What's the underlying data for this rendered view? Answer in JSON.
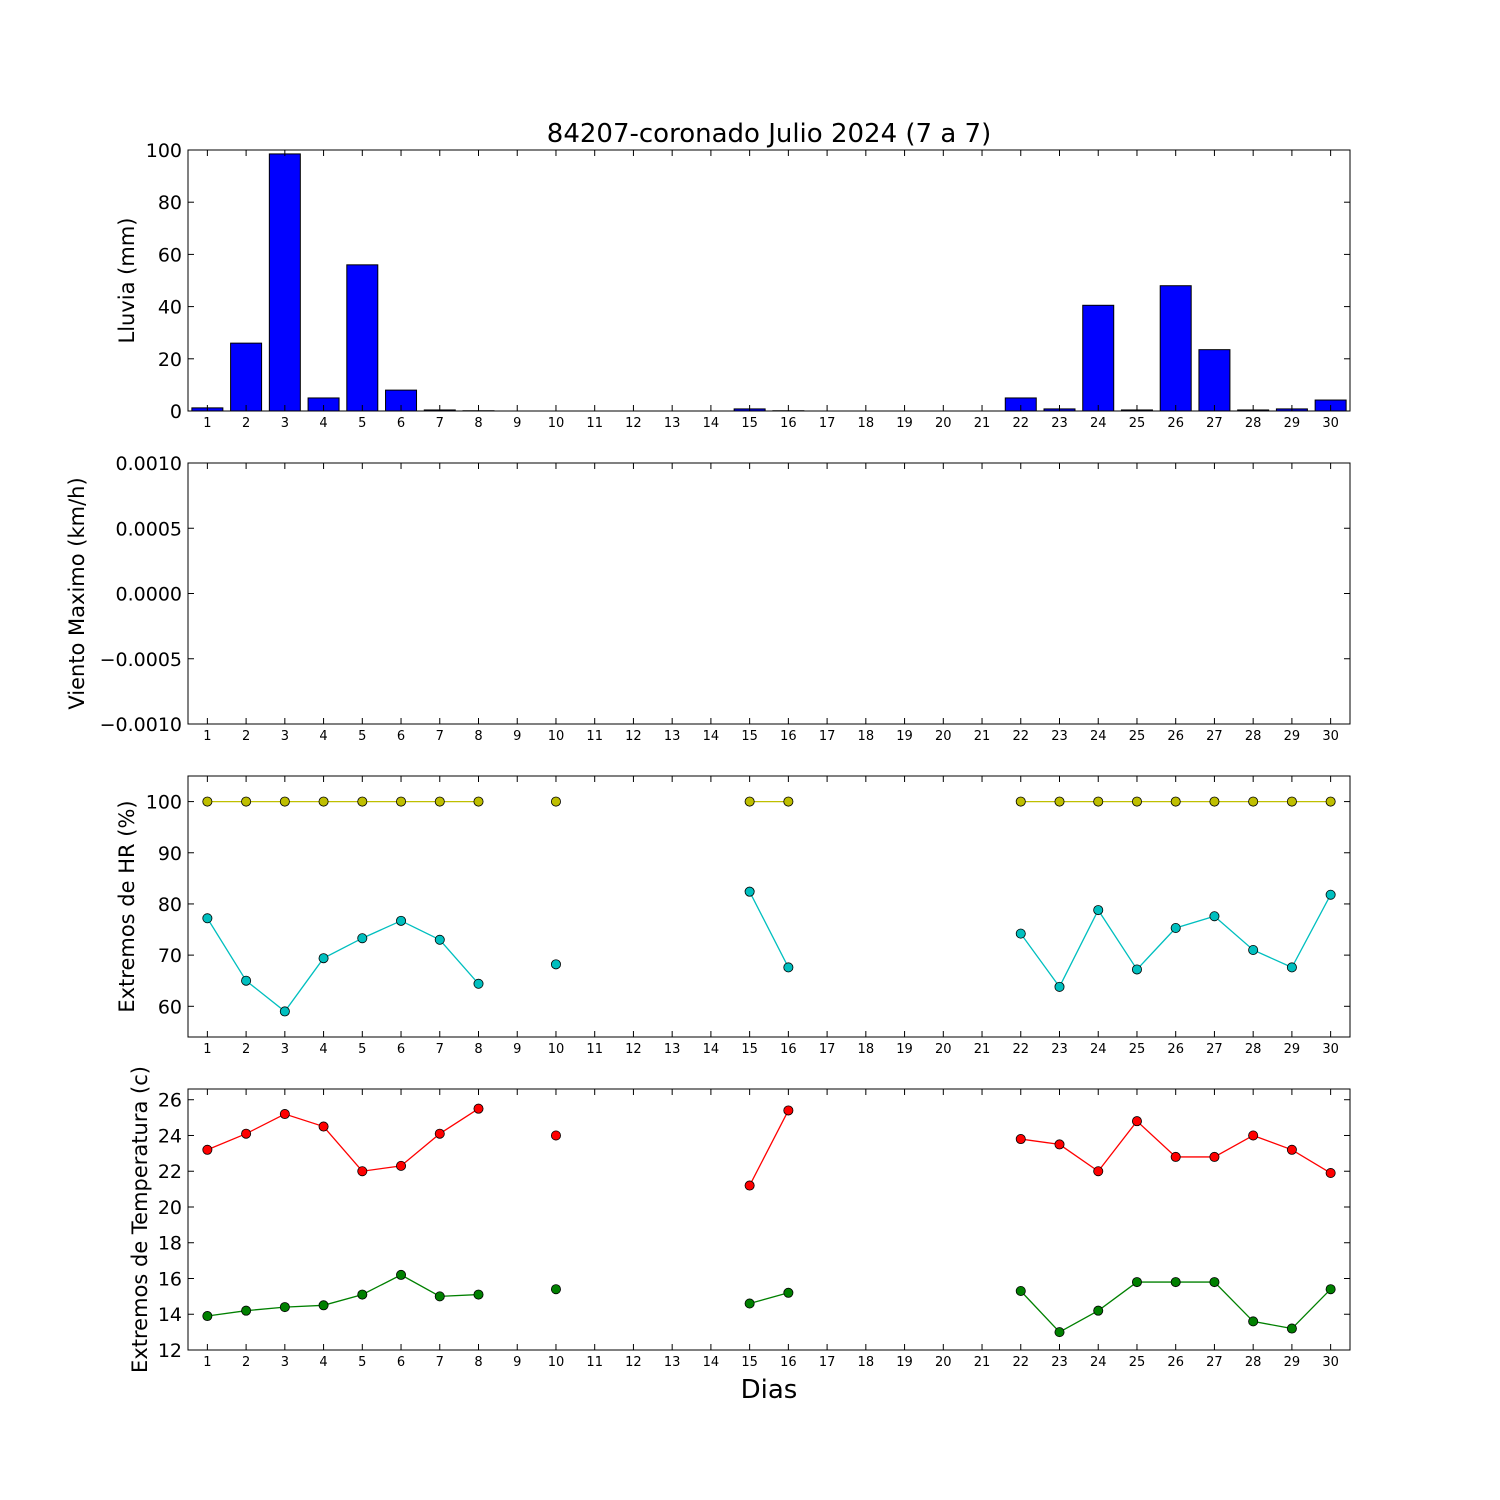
{
  "title": "84207-coronado Julio 2024  (7 a 7)",
  "xlabel": "Dias",
  "days": [
    1,
    2,
    3,
    4,
    5,
    6,
    7,
    8,
    9,
    10,
    11,
    12,
    13,
    14,
    15,
    16,
    17,
    18,
    19,
    20,
    21,
    22,
    23,
    24,
    25,
    26,
    27,
    28,
    29,
    30
  ],
  "colors": {
    "rain": "#0000ff",
    "hr_max": "#bfbf00",
    "hr_min": "#00bfbf",
    "temp_max": "#ff0000",
    "temp_min": "#008000"
  },
  "chart_data": [
    {
      "type": "bar",
      "ylabel": "Lluvia (mm)",
      "ylim": [
        0,
        100
      ],
      "yticks": [
        "0",
        "20",
        "40",
        "60",
        "80",
        "100"
      ],
      "x": [
        1,
        2,
        3,
        4,
        5,
        6,
        7,
        8,
        9,
        10,
        11,
        12,
        13,
        14,
        15,
        16,
        17,
        18,
        19,
        20,
        21,
        22,
        23,
        24,
        25,
        26,
        27,
        28,
        29,
        30
      ],
      "values": [
        1.2,
        26,
        98.5,
        5,
        56,
        8,
        0.4,
        0.1,
        0,
        0,
        0,
        0,
        0,
        0,
        0.8,
        0.1,
        0,
        0,
        0,
        0,
        0,
        5,
        0.8,
        40.5,
        0.4,
        48,
        23.5,
        0.4,
        0.8,
        4.2
      ]
    },
    {
      "type": "line",
      "ylabel": "Viento Maximo (km/h)",
      "ylim": [
        -0.001,
        0.001
      ],
      "yticks": [
        "−0.0010",
        "−0.0005",
        "0.0000",
        "0.0005",
        "0.0010"
      ],
      "series": []
    },
    {
      "type": "line",
      "ylabel": "Extremos de HR (%)",
      "ylim": [
        54,
        105
      ],
      "yticks": [
        "60",
        "70",
        "80",
        "90",
        "100"
      ],
      "series": [
        {
          "color_key": "hr_max",
          "values": [
            100,
            100,
            100,
            100,
            100,
            100,
            100,
            100,
            null,
            100,
            null,
            null,
            null,
            null,
            100,
            100,
            null,
            null,
            null,
            null,
            null,
            100,
            100,
            100,
            100,
            100,
            100,
            100,
            100,
            100
          ]
        },
        {
          "color_key": "hr_min",
          "values": [
            77.2,
            65,
            59,
            69.4,
            73.3,
            76.7,
            73,
            64.4,
            null,
            68.2,
            null,
            null,
            null,
            null,
            82.4,
            67.6,
            null,
            null,
            null,
            null,
            null,
            74.2,
            63.8,
            78.8,
            67.2,
            75.3,
            77.6,
            71,
            67.6,
            81.8
          ]
        }
      ]
    },
    {
      "type": "line",
      "ylabel": "Extremos de Temperatura (c)",
      "ylim": [
        12,
        26.6
      ],
      "yticks": [
        "12",
        "14",
        "16",
        "18",
        "20",
        "22",
        "24",
        "26"
      ],
      "series": [
        {
          "color_key": "temp_max",
          "values": [
            23.2,
            24.1,
            25.2,
            24.5,
            22,
            22.3,
            24.1,
            25.5,
            null,
            24,
            null,
            null,
            null,
            null,
            21.2,
            25.4,
            null,
            null,
            null,
            null,
            null,
            23.8,
            23.5,
            22,
            24.8,
            22.8,
            22.8,
            24,
            23.2,
            21.9
          ]
        },
        {
          "color_key": "temp_min",
          "values": [
            13.9,
            14.2,
            14.4,
            14.5,
            15.1,
            16.2,
            15,
            15.1,
            null,
            15.4,
            null,
            null,
            null,
            null,
            14.6,
            15.2,
            null,
            null,
            null,
            null,
            null,
            15.3,
            13,
            14.2,
            15.8,
            15.8,
            15.8,
            13.6,
            13.2,
            15.4
          ]
        }
      ]
    }
  ]
}
